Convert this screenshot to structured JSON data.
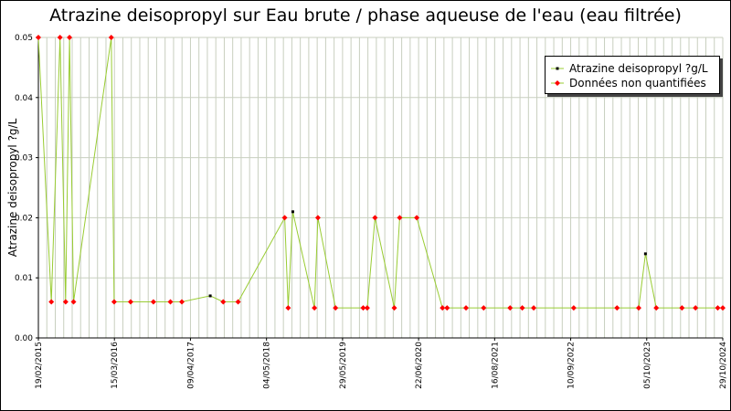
{
  "colors": {
    "line": "#99cc33",
    "quantified_marker": "#000000",
    "non_quantified_marker": "#ff0000",
    "grid": "#c8cfbf",
    "background": "#ffffff"
  },
  "chart_data": {
    "type": "line",
    "title": "Atrazine deisopropyl sur Eau brute / phase aqueuse de l'eau (eau filtrée)",
    "xlabel": "",
    "ylabel": "Atrazine deisopropyl ?g/L",
    "x_type": "date",
    "xlim": [
      "2015-02-19",
      "2024-10-29"
    ],
    "ylim": [
      0,
      0.05
    ],
    "yticks": [
      "0.00",
      "0.01",
      "0.02",
      "0.03",
      "0.04",
      "0.05"
    ],
    "xticks": [
      "19/02/2015",
      "15/03/2016",
      "09/04/2017",
      "04/05/2018",
      "29/05/2019",
      "22/06/2020",
      "16/08/2021",
      "10/09/2022",
      "05/10/2023",
      "29/10/2024"
    ],
    "grid": true,
    "legend_position": "top-right",
    "series": [
      {
        "name": "Atrazine deisopropyl ?g/L",
        "x": [
          "2015-02-19",
          "2015-04-27",
          "2015-06-11",
          "2015-07-10",
          "2015-07-30",
          "2015-08-20",
          "2016-03-02",
          "2016-03-17",
          "2016-06-10",
          "2016-10-06",
          "2017-01-02",
          "2017-03-02",
          "2017-07-27",
          "2017-10-02",
          "2017-12-18",
          "2018-08-16",
          "2018-09-03",
          "2018-09-27",
          "2019-01-17",
          "2019-02-04",
          "2019-05-06",
          "2019-09-26",
          "2019-10-17",
          "2019-11-26",
          "2020-03-05",
          "2020-04-02",
          "2020-06-29",
          "2020-11-09",
          "2020-12-03",
          "2021-03-11",
          "2021-06-10",
          "2021-10-25",
          "2021-12-27",
          "2022-02-24",
          "2022-09-19",
          "2023-05-01",
          "2023-08-21",
          "2023-09-25",
          "2023-11-20",
          "2024-04-01",
          "2024-06-10",
          "2024-10-03",
          "2024-10-29"
        ],
        "y": [
          0.05,
          0.006,
          0.05,
          0.006,
          0.05,
          0.006,
          0.05,
          0.006,
          0.006,
          0.006,
          0.006,
          0.006,
          0.007,
          0.006,
          0.006,
          0.02,
          0.005,
          0.021,
          0.005,
          0.02,
          0.005,
          0.005,
          0.005,
          0.02,
          0.005,
          0.02,
          0.02,
          0.005,
          0.005,
          0.005,
          0.005,
          0.005,
          0.005,
          0.005,
          0.005,
          0.005,
          0.005,
          0.014,
          0.005,
          0.005,
          0.005,
          0.005,
          0.005
        ],
        "quantified": [
          false,
          false,
          false,
          false,
          false,
          false,
          false,
          false,
          false,
          false,
          false,
          false,
          true,
          false,
          false,
          false,
          false,
          true,
          false,
          false,
          false,
          false,
          false,
          false,
          false,
          false,
          false,
          false,
          false,
          false,
          false,
          false,
          false,
          false,
          false,
          false,
          false,
          true,
          false,
          false,
          false,
          false,
          false
        ]
      }
    ],
    "legend": [
      {
        "label": "Atrazine deisopropyl ?g/L",
        "marker": "quantified"
      },
      {
        "label": "Données non quantifiées",
        "marker": "non_quantified"
      }
    ]
  }
}
